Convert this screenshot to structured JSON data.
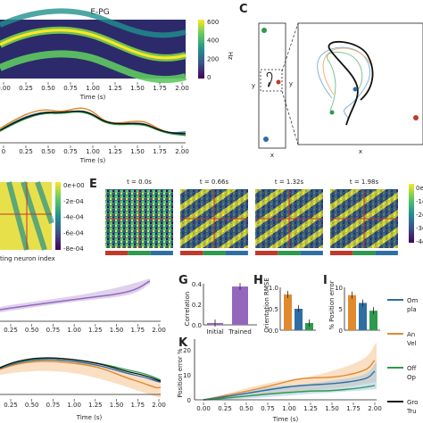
{
  "panel_labels": {
    "C": "C",
    "E": "E",
    "G": "G",
    "H": "H",
    "I": "I",
    "K": "K"
  },
  "top_heatmap": {
    "title": "E-PG",
    "xlabel": "Time (s)",
    "xticks": [
      "0.00",
      "0.25",
      "0.50",
      "0.75",
      "1.00",
      "1.25",
      "1.50",
      "1.75",
      "2.00"
    ],
    "colorbar_label": "Hz",
    "colorbar_ticks": [
      "600",
      "400",
      "200",
      "0"
    ]
  },
  "top_trace": {
    "xlabel": "Time (s)",
    "xticks": [
      "0",
      "0.25",
      "0.50",
      "0.75",
      "1.00",
      "1.25",
      "1.50",
      "1.75",
      "2.00"
    ]
  },
  "arena": {
    "xlabel": "x",
    "ylabel": "y",
    "zoom_xlabel": "x",
    "zoom_ylabel": "y"
  },
  "left_matrix": {
    "xlabel": "ting neuron index",
    "colorbar_ticks": [
      "0e+00",
      "-2e-04",
      "-4e-04",
      "-6e-04",
      "-8e-04"
    ]
  },
  "panel_E": {
    "titles": [
      "t = 0.0s",
      "t = 0.66s",
      "t = 1.32s",
      "t = 1.98s"
    ],
    "colorbar_ticks": [
      "0e-",
      "-1e-",
      "-2e-",
      "-3e-",
      "-4e-"
    ]
  },
  "left_trace": {
    "xticks": [
      "0.25",
      "0.50",
      "0.75",
      "1.00",
      "1.25",
      "1.50",
      "1.75",
      "2.00"
    ]
  },
  "bottom_left": {
    "xlabel": "Time (s)",
    "xticks": [
      "0.25",
      "0.50",
      "0.75",
      "1.00",
      "1.25",
      "1.50",
      "1.75",
      "2.00"
    ]
  },
  "panel_G": {
    "ylabel": "Correlation",
    "categories": [
      "Initial",
      "Trained"
    ],
    "values": [
      0.02,
      0.42
    ],
    "yticks": [
      "0.0",
      "0.2",
      "0.4"
    ],
    "colors": [
      "#9467bd",
      "#9467bd"
    ]
  },
  "panel_H": {
    "ylabel": "Orientation RMSE",
    "values": [
      1.0,
      0.6,
      0.2
    ],
    "yticks": [
      "0.0",
      "0.5",
      "1.0"
    ],
    "colors": [
      "#e08a30",
      "#2f6ea3",
      "#2e9a4e"
    ]
  },
  "panel_I": {
    "ylabel": "% Position error",
    "values": [
      9,
      7,
      5
    ],
    "yticks": [
      "0",
      "5",
      "10"
    ],
    "colors": [
      "#e08a30",
      "#2f6ea3",
      "#2e9a4e"
    ]
  },
  "panel_K": {
    "ylabel": "Position error %",
    "xlabel": "Time (s)",
    "xticks": [
      "0.00",
      "0.25",
      "0.50",
      "0.75",
      "1.00",
      "1.25",
      "1.50",
      "1.75",
      "2.00"
    ],
    "yticks": [
      "0",
      "10",
      "20"
    ]
  },
  "legend": {
    "entries": [
      {
        "text1": "Om",
        "text2": "pla",
        "color": "#2f6ea3"
      },
      {
        "text1": "An",
        "text2": "Vel",
        "color": "#e08a30"
      },
      {
        "text1": "Off",
        "text2": "Op",
        "color": "#2e9a4e"
      },
      {
        "text1": "Gro",
        "text2": "Tru",
        "color": "#111111"
      }
    ]
  },
  "colors": {
    "viridis_dark": "#440154",
    "viridis_mid": "#21918c",
    "viridis_light": "#fde725",
    "orange": "#e08a30",
    "blue": "#2f6ea3",
    "green": "#2e9a4e",
    "purple": "#9467bd",
    "red": "#c0392b"
  }
}
